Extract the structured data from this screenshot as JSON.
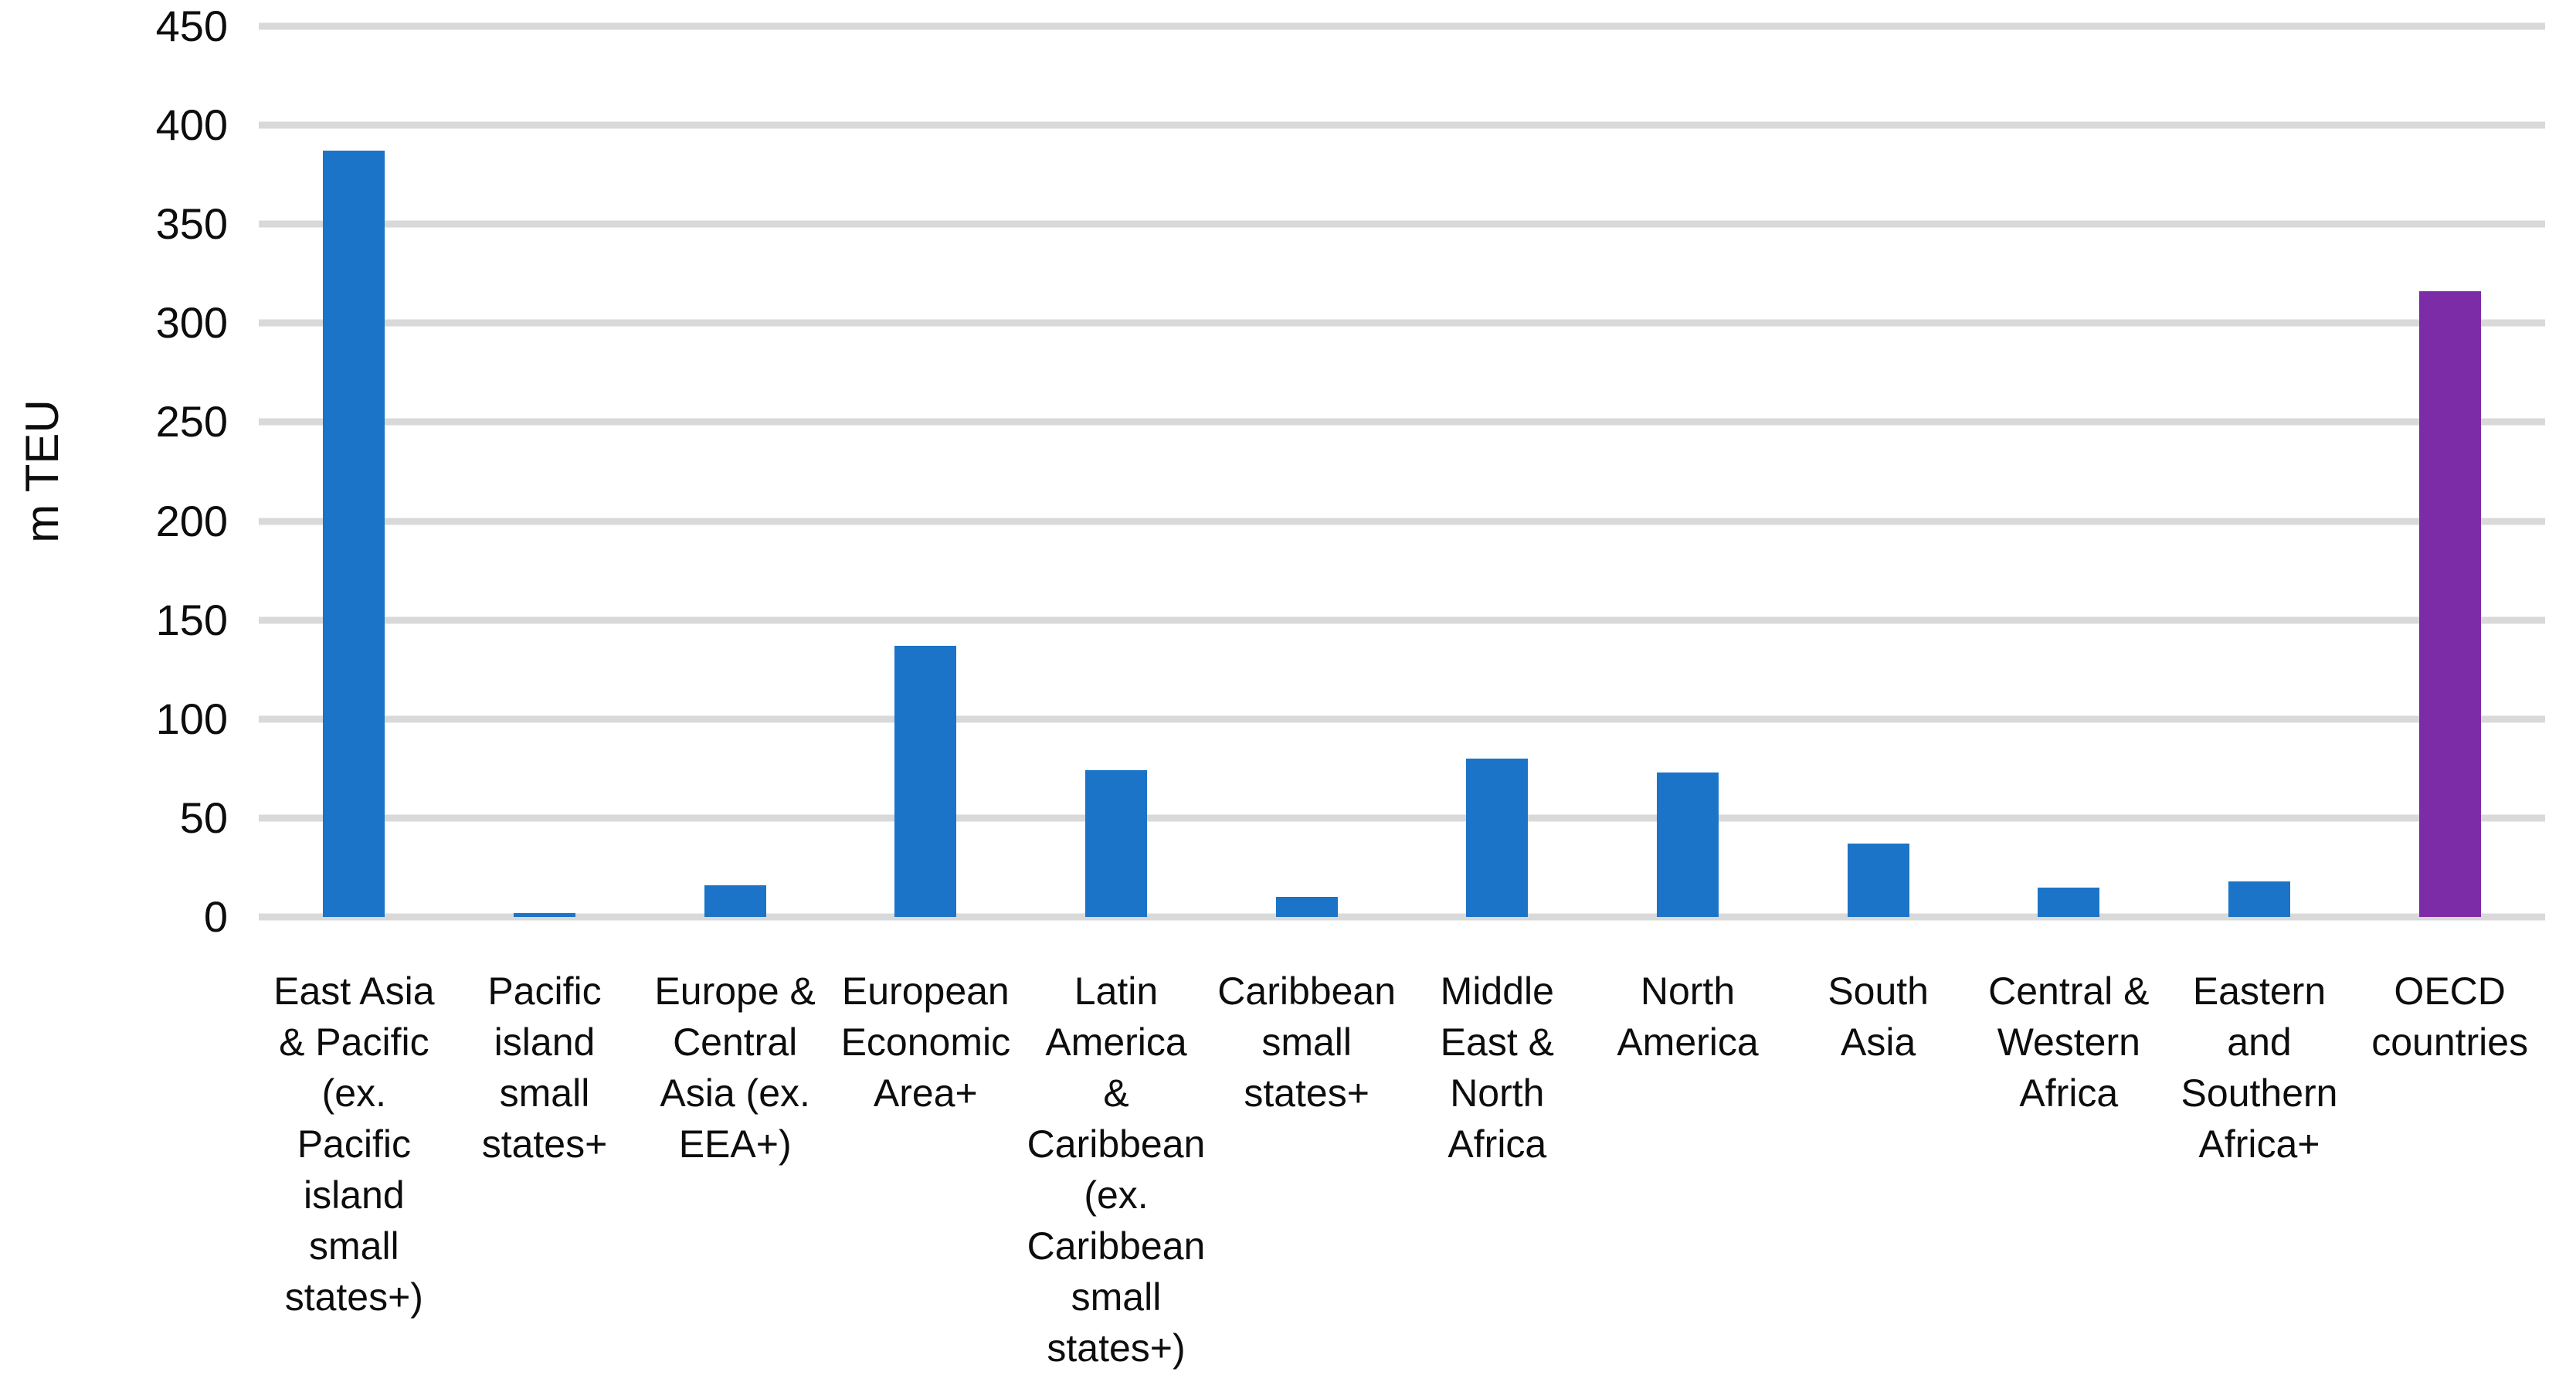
{
  "chart_data": {
    "type": "bar",
    "title": "",
    "xlabel": "",
    "ylabel": "m TEU",
    "ylim": [
      0,
      450
    ],
    "yticks": [
      0,
      50,
      100,
      150,
      200,
      250,
      300,
      350,
      400,
      450
    ],
    "grid": true,
    "legend": false,
    "categories": [
      "East Asia\n& Pacific\n(ex.\nPacific\nisland\nsmall\nstates+)",
      "Pacific\nisland\nsmall\nstates+",
      "Europe &\nCentral\nAsia (ex.\nEEA+)",
      "European\nEconomic\nArea+",
      "Latin\nAmerica\n&\nCaribbean\n(ex.\nCaribbean\nsmall\nstates+)",
      "Caribbean\nsmall\nstates+",
      "Middle\nEast &\nNorth\nAfrica",
      "North\nAmerica",
      "South\nAsia",
      "Central &\nWestern\nAfrica",
      "Eastern\nand\nSouthern\nAfrica+",
      "OECD\ncountries"
    ],
    "values": [
      387,
      2,
      16,
      137,
      74,
      10,
      80,
      73,
      37,
      15,
      18,
      316
    ],
    "bar_color": "#1b74c7",
    "highlight_index": 11,
    "highlight_color": "#7d2ca8",
    "gridline_color": "#d9d9d9"
  }
}
